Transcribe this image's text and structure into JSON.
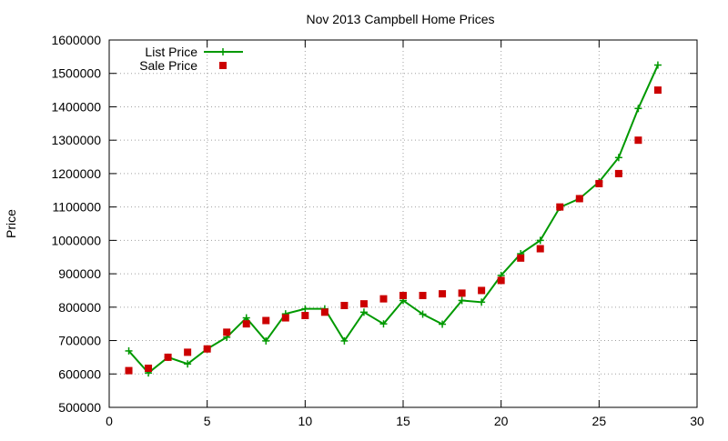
{
  "chart_data": {
    "type": "line",
    "title": "Nov 2013 Campbell Home Prices",
    "xlabel": "",
    "ylabel": "Price",
    "xlim": [
      0,
      30
    ],
    "ylim": [
      500000,
      1600000
    ],
    "xticks": [
      0,
      5,
      10,
      15,
      20,
      25,
      30
    ],
    "yticks": [
      500000,
      600000,
      700000,
      800000,
      900000,
      1000000,
      1100000,
      1200000,
      1300000,
      1400000,
      1500000,
      1600000
    ],
    "grid": true,
    "legend_position": "top-left",
    "series": [
      {
        "name": "List Price",
        "style": "line-cross",
        "color": "#009900",
        "x": [
          1,
          2,
          3,
          4,
          5,
          6,
          7,
          8,
          9,
          10,
          11,
          12,
          13,
          14,
          15,
          16,
          17,
          18,
          19,
          20,
          21,
          22,
          23,
          24,
          25,
          26,
          27,
          28
        ],
        "y": [
          669000,
          603000,
          650000,
          630000,
          675000,
          710000,
          768000,
          699000,
          780000,
          795000,
          795000,
          699000,
          785000,
          750000,
          820000,
          779000,
          749000,
          820000,
          815000,
          895000,
          960000,
          1000000,
          1099000,
          1125000,
          1175000,
          1248000,
          1395000,
          1525000
        ]
      },
      {
        "name": "Sale Price",
        "style": "square",
        "color": "#cc0000",
        "x": [
          1,
          2,
          3,
          4,
          5,
          6,
          7,
          8,
          9,
          10,
          11,
          12,
          13,
          14,
          15,
          16,
          17,
          18,
          19,
          20,
          21,
          22,
          23,
          24,
          25,
          26,
          27,
          28
        ],
        "y": [
          610000,
          617000,
          650000,
          665000,
          675000,
          725000,
          750000,
          760000,
          768000,
          775000,
          785000,
          805000,
          810000,
          825000,
          835000,
          835000,
          840000,
          842000,
          850000,
          880000,
          947000,
          975000,
          1100000,
          1125000,
          1170000,
          1200000,
          1300000,
          1450000
        ]
      }
    ]
  }
}
